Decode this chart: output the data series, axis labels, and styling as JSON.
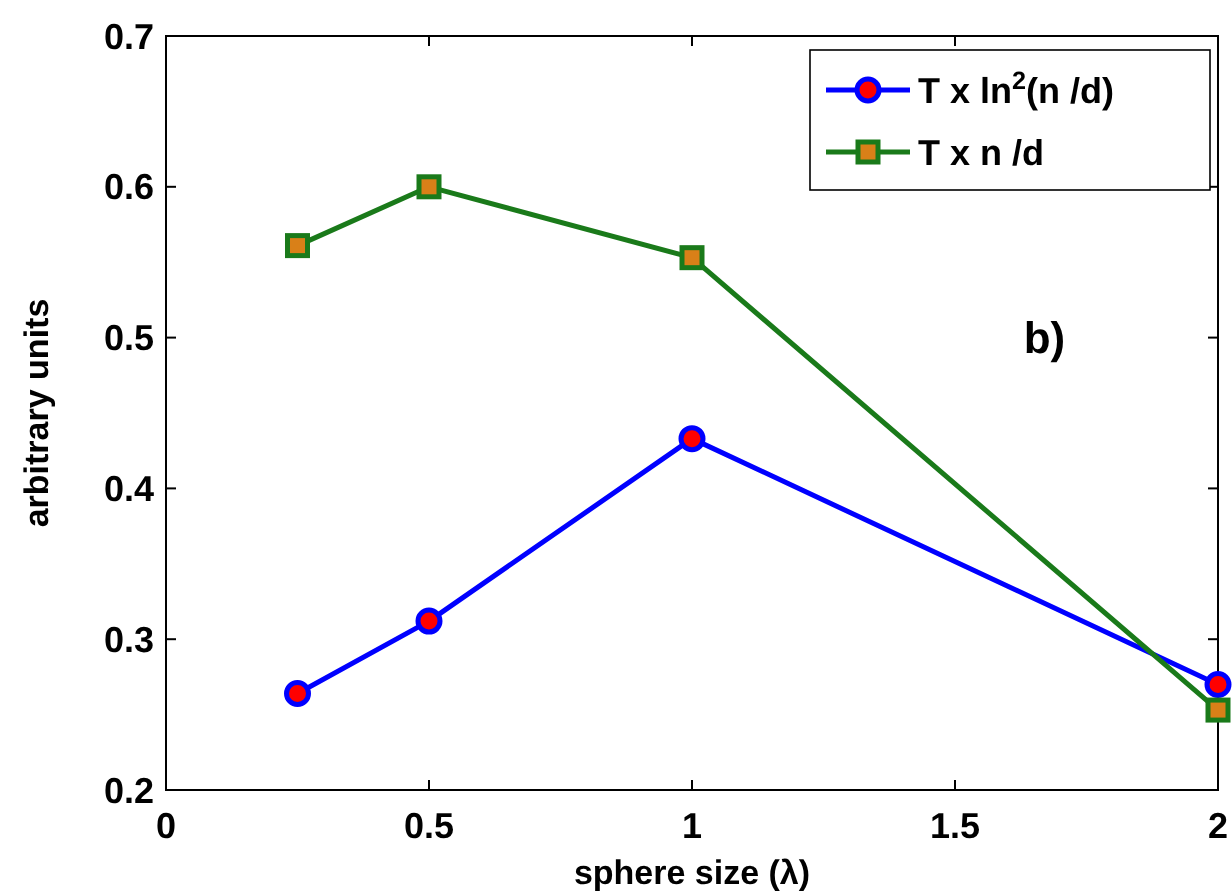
{
  "chart_data": {
    "type": "line",
    "xlabel": "sphere size (λ)",
    "ylabel": "arbitrary units",
    "x": [
      0.25,
      0.5,
      1,
      2
    ],
    "series": [
      {
        "name": "T x ln$^{2}$(n /d)",
        "color": "#0000ff",
        "marker": "circle",
        "values": [
          0.264,
          0.312,
          0.433,
          0.27
        ]
      },
      {
        "name": "T x n /d",
        "color": "#1a7a1a",
        "marker": "square",
        "values": [
          0.561,
          0.6,
          0.553,
          0.253
        ]
      }
    ],
    "xlim": [
      0,
      2
    ],
    "xticks": [
      0,
      0.5,
      1,
      1.5,
      2
    ],
    "ylim": [
      0.2,
      0.7
    ],
    "yticks": [
      0.2,
      0.3,
      0.4,
      0.5,
      0.6,
      0.7
    ],
    "annotations": [
      "b)"
    ],
    "legend": "top right",
    "grid": false
  }
}
